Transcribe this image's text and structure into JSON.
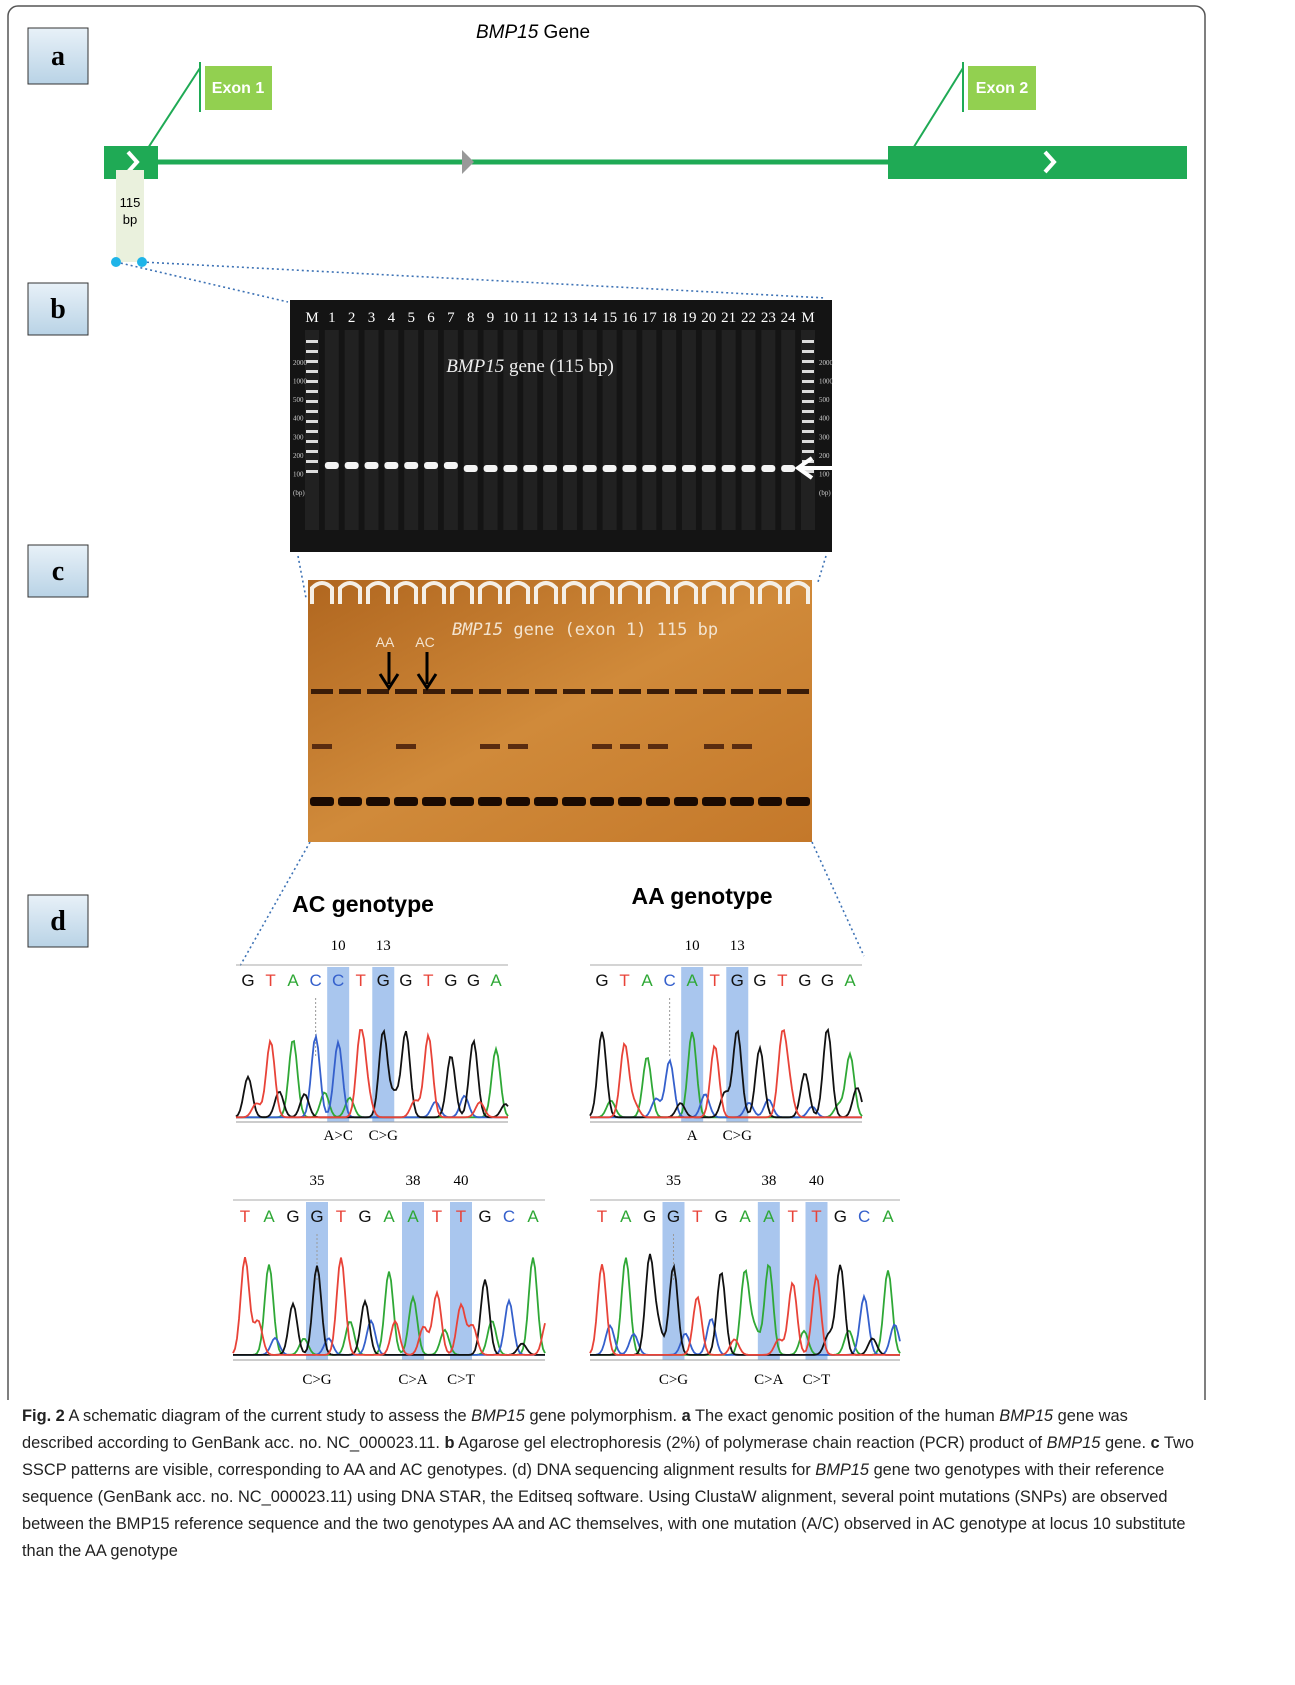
{
  "figure": {
    "panel_labels": [
      "a",
      "b",
      "c",
      "d"
    ],
    "gene_title": [
      "BMP15",
      " Gene"
    ],
    "exons": [
      "Exon 1",
      "Exon 2"
    ],
    "fragment_label": [
      "115",
      "bp"
    ],
    "gel": {
      "lanes": [
        "M",
        "1",
        "2",
        "3",
        "4",
        "5",
        "6",
        "7",
        "8",
        "9",
        "10",
        "11",
        "12",
        "13",
        "14",
        "15",
        "16",
        "17",
        "18",
        "19",
        "20",
        "21",
        "22",
        "23",
        "24",
        "M"
      ],
      "title": [
        "BMP15",
        " gene (115 bp)"
      ],
      "ladder_labels": [
        "2000",
        "1000",
        "500",
        "400",
        "300",
        "200",
        "100",
        "(bp)"
      ]
    },
    "sscp": {
      "title": [
        "BMP15",
        " gene (exon 1) 115 bp"
      ],
      "genotype_marks": [
        "AA",
        "AC"
      ]
    },
    "sequencing": {
      "titles": [
        "AC genotype",
        "AA genotype"
      ],
      "panels": [
        {
          "positions": [
            10,
            13
          ],
          "bases": [
            "G",
            "T",
            "A",
            "C",
            "C",
            "T",
            "G",
            "G",
            "T",
            "G",
            "G",
            "A"
          ],
          "mutations": [
            "A>C",
            "C>G"
          ]
        },
        {
          "positions": [
            10,
            13
          ],
          "bases": [
            "G",
            "T",
            "A",
            "C",
            "A",
            "T",
            "G",
            "G",
            "T",
            "G",
            "G",
            "A"
          ],
          "mutations": [
            "A",
            "C>G"
          ]
        },
        {
          "positions": [
            35,
            38,
            40
          ],
          "bases": [
            "T",
            "A",
            "G",
            "G",
            "T",
            "G",
            "A",
            "A",
            "T",
            "T",
            "G",
            "C",
            "A"
          ],
          "mutations": [
            "C>G",
            "C>A",
            "C>T"
          ]
        },
        {
          "positions": [
            35,
            38,
            40
          ],
          "bases": [
            "T",
            "A",
            "G",
            "G",
            "T",
            "G",
            "A",
            "A",
            "T",
            "T",
            "G",
            "C",
            "A"
          ],
          "mutations": [
            "C>G",
            "C>A",
            "C>T"
          ]
        }
      ]
    },
    "caption": [
      "Fig. 2",
      " A schematic diagram of the current study to assess the ",
      "BMP15",
      " gene polymorphism. ",
      "a",
      " The exact genomic position of the human ",
      "BMP15",
      " gene was described according to GenBank acc. no. NC_000023.11. ",
      "b",
      " Agarose gel electrophoresis (2%) of polymerase chain reaction (PCR) product of ",
      "BMP15",
      " gene. ",
      "c",
      " Two SSCP patterns are visible, corresponding to AA and AC genotypes. (d) DNA sequencing alignment results for ",
      "BMP15",
      " gene two genotypes with their reference sequence (GenBank acc. no. NC_000023.11) using DNA STAR, the Editseq software. Using ClustaW alignment, several point mutations (SNPs) are observed between the BMP15 reference sequence and the two genotypes AA and AC themselves, with one mutation (A/C) observed in AC genotype at locus 10 substitute than the AA genotype"
    ]
  }
}
